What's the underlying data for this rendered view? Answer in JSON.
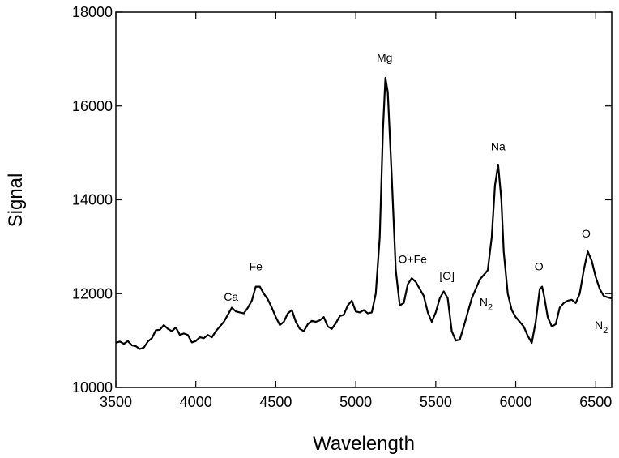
{
  "chart_data": {
    "type": "line",
    "title": "",
    "xlabel": "Wavelength",
    "ylabel": "Signal",
    "xlim": [
      3500,
      6600
    ],
    "ylim": [
      10000,
      18000
    ],
    "xticks": [
      3500,
      4000,
      4500,
      5000,
      5500,
      6000,
      6500
    ],
    "yticks": [
      10000,
      12000,
      14000,
      16000,
      18000
    ],
    "grid": false,
    "legend": "none",
    "series": [
      {
        "color": "#000000",
        "points": [
          [
            3500,
            10950
          ],
          [
            3525,
            10980
          ],
          [
            3550,
            10930
          ],
          [
            3575,
            10990
          ],
          [
            3600,
            10900
          ],
          [
            3625,
            10880
          ],
          [
            3650,
            10820
          ],
          [
            3675,
            10850
          ],
          [
            3700,
            10980
          ],
          [
            3725,
            11050
          ],
          [
            3750,
            11220
          ],
          [
            3775,
            11230
          ],
          [
            3800,
            11330
          ],
          [
            3825,
            11250
          ],
          [
            3850,
            11200
          ],
          [
            3875,
            11280
          ],
          [
            3900,
            11120
          ],
          [
            3925,
            11150
          ],
          [
            3950,
            11120
          ],
          [
            3975,
            10960
          ],
          [
            4000,
            10990
          ],
          [
            4025,
            11070
          ],
          [
            4050,
            11050
          ],
          [
            4075,
            11120
          ],
          [
            4100,
            11070
          ],
          [
            4125,
            11200
          ],
          [
            4150,
            11300
          ],
          [
            4175,
            11400
          ],
          [
            4200,
            11550
          ],
          [
            4225,
            11700
          ],
          [
            4250,
            11620
          ],
          [
            4275,
            11600
          ],
          [
            4300,
            11580
          ],
          [
            4325,
            11700
          ],
          [
            4350,
            11850
          ],
          [
            4375,
            12150
          ],
          [
            4400,
            12150
          ],
          [
            4425,
            12000
          ],
          [
            4450,
            11880
          ],
          [
            4475,
            11700
          ],
          [
            4500,
            11500
          ],
          [
            4525,
            11330
          ],
          [
            4550,
            11400
          ],
          [
            4575,
            11580
          ],
          [
            4600,
            11650
          ],
          [
            4625,
            11400
          ],
          [
            4650,
            11250
          ],
          [
            4675,
            11200
          ],
          [
            4700,
            11350
          ],
          [
            4725,
            11420
          ],
          [
            4750,
            11400
          ],
          [
            4775,
            11430
          ],
          [
            4800,
            11500
          ],
          [
            4825,
            11300
          ],
          [
            4850,
            11250
          ],
          [
            4875,
            11370
          ],
          [
            4900,
            11520
          ],
          [
            4925,
            11550
          ],
          [
            4950,
            11750
          ],
          [
            4975,
            11850
          ],
          [
            5000,
            11620
          ],
          [
            5025,
            11600
          ],
          [
            5050,
            11650
          ],
          [
            5075,
            11580
          ],
          [
            5100,
            11600
          ],
          [
            5125,
            12000
          ],
          [
            5150,
            13200
          ],
          [
            5170,
            15500
          ],
          [
            5185,
            16600
          ],
          [
            5200,
            16300
          ],
          [
            5225,
            14500
          ],
          [
            5250,
            12500
          ],
          [
            5275,
            11750
          ],
          [
            5300,
            11800
          ],
          [
            5325,
            12200
          ],
          [
            5350,
            12330
          ],
          [
            5375,
            12250
          ],
          [
            5400,
            12100
          ],
          [
            5425,
            11950
          ],
          [
            5450,
            11600
          ],
          [
            5475,
            11400
          ],
          [
            5500,
            11600
          ],
          [
            5525,
            11900
          ],
          [
            5550,
            12050
          ],
          [
            5575,
            11900
          ],
          [
            5600,
            11200
          ],
          [
            5625,
            11000
          ],
          [
            5650,
            11020
          ],
          [
            5675,
            11300
          ],
          [
            5700,
            11600
          ],
          [
            5725,
            11900
          ],
          [
            5750,
            12100
          ],
          [
            5775,
            12300
          ],
          [
            5800,
            12400
          ],
          [
            5825,
            12500
          ],
          [
            5850,
            13200
          ],
          [
            5870,
            14300
          ],
          [
            5890,
            14750
          ],
          [
            5910,
            14000
          ],
          [
            5925,
            12900
          ],
          [
            5950,
            12000
          ],
          [
            5975,
            11650
          ],
          [
            6000,
            11500
          ],
          [
            6025,
            11400
          ],
          [
            6050,
            11300
          ],
          [
            6075,
            11100
          ],
          [
            6100,
            10950
          ],
          [
            6125,
            11400
          ],
          [
            6150,
            12100
          ],
          [
            6165,
            12150
          ],
          [
            6180,
            11900
          ],
          [
            6200,
            11500
          ],
          [
            6225,
            11300
          ],
          [
            6250,
            11350
          ],
          [
            6275,
            11700
          ],
          [
            6300,
            11800
          ],
          [
            6325,
            11850
          ],
          [
            6350,
            11870
          ],
          [
            6375,
            11800
          ],
          [
            6400,
            12000
          ],
          [
            6425,
            12500
          ],
          [
            6450,
            12900
          ],
          [
            6475,
            12700
          ],
          [
            6500,
            12350
          ],
          [
            6525,
            12100
          ],
          [
            6550,
            11950
          ],
          [
            6575,
            11920
          ],
          [
            6600,
            11900
          ]
        ]
      }
    ],
    "annotations": [
      {
        "text": "Ca",
        "x": 4220,
        "y": 11850
      },
      {
        "text": "Fe",
        "x": 4375,
        "y": 12500
      },
      {
        "text": "Mg",
        "x": 5180,
        "y": 16950
      },
      {
        "text": "O+Fe",
        "x": 5355,
        "y": 12650
      },
      {
        "text": "[O]",
        "x": 5570,
        "y": 12300
      },
      {
        "text": "Na",
        "x": 5890,
        "y": 15050
      },
      {
        "text": "N",
        "sub": "2",
        "x": 5815,
        "y": 11740
      },
      {
        "text": "O",
        "x": 6145,
        "y": 12500
      },
      {
        "text": "O",
        "x": 6440,
        "y": 13200
      },
      {
        "text": "N",
        "sub": "2",
        "x": 6535,
        "y": 11240
      }
    ]
  }
}
